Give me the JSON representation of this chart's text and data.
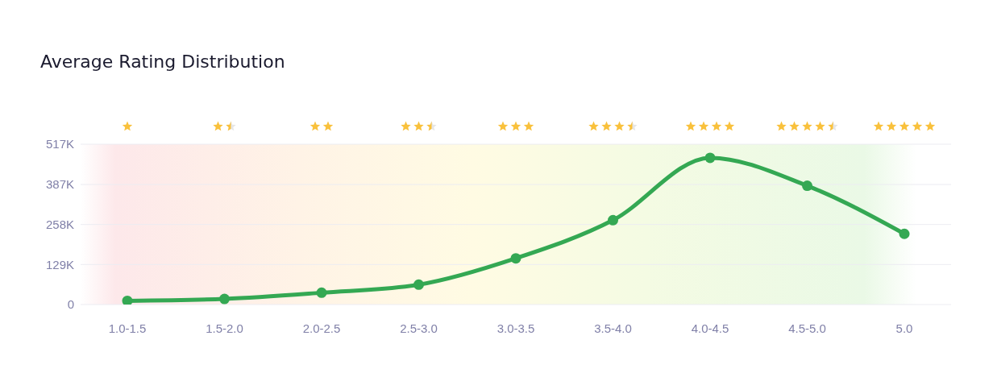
{
  "chart_data": {
    "type": "line",
    "title": "Average Rating Distribution",
    "categories": [
      "1.0-1.5",
      "1.5-2.0",
      "2.0-2.5",
      "2.5-3.0",
      "3.0-3.5",
      "3.5-4.0",
      "4.0-4.5",
      "4.5-5.0",
      "5.0"
    ],
    "series": [
      {
        "color": "#34a853",
        "values": [
          12000,
          18000,
          38000,
          64000,
          149000,
          272000,
          473000,
          383000,
          228000
        ]
      }
    ],
    "ylim": [
      0,
      517000
    ],
    "yticks": [
      0,
      {
        "value": 129000,
        "label": "129K"
      },
      {
        "value": 258000,
        "label": "258K"
      },
      {
        "value": 387000,
        "label": "387K"
      },
      {
        "value": 517000,
        "label": "517K"
      }
    ],
    "grid": "y",
    "marker": "circle",
    "line_style": "solid"
  }
}
